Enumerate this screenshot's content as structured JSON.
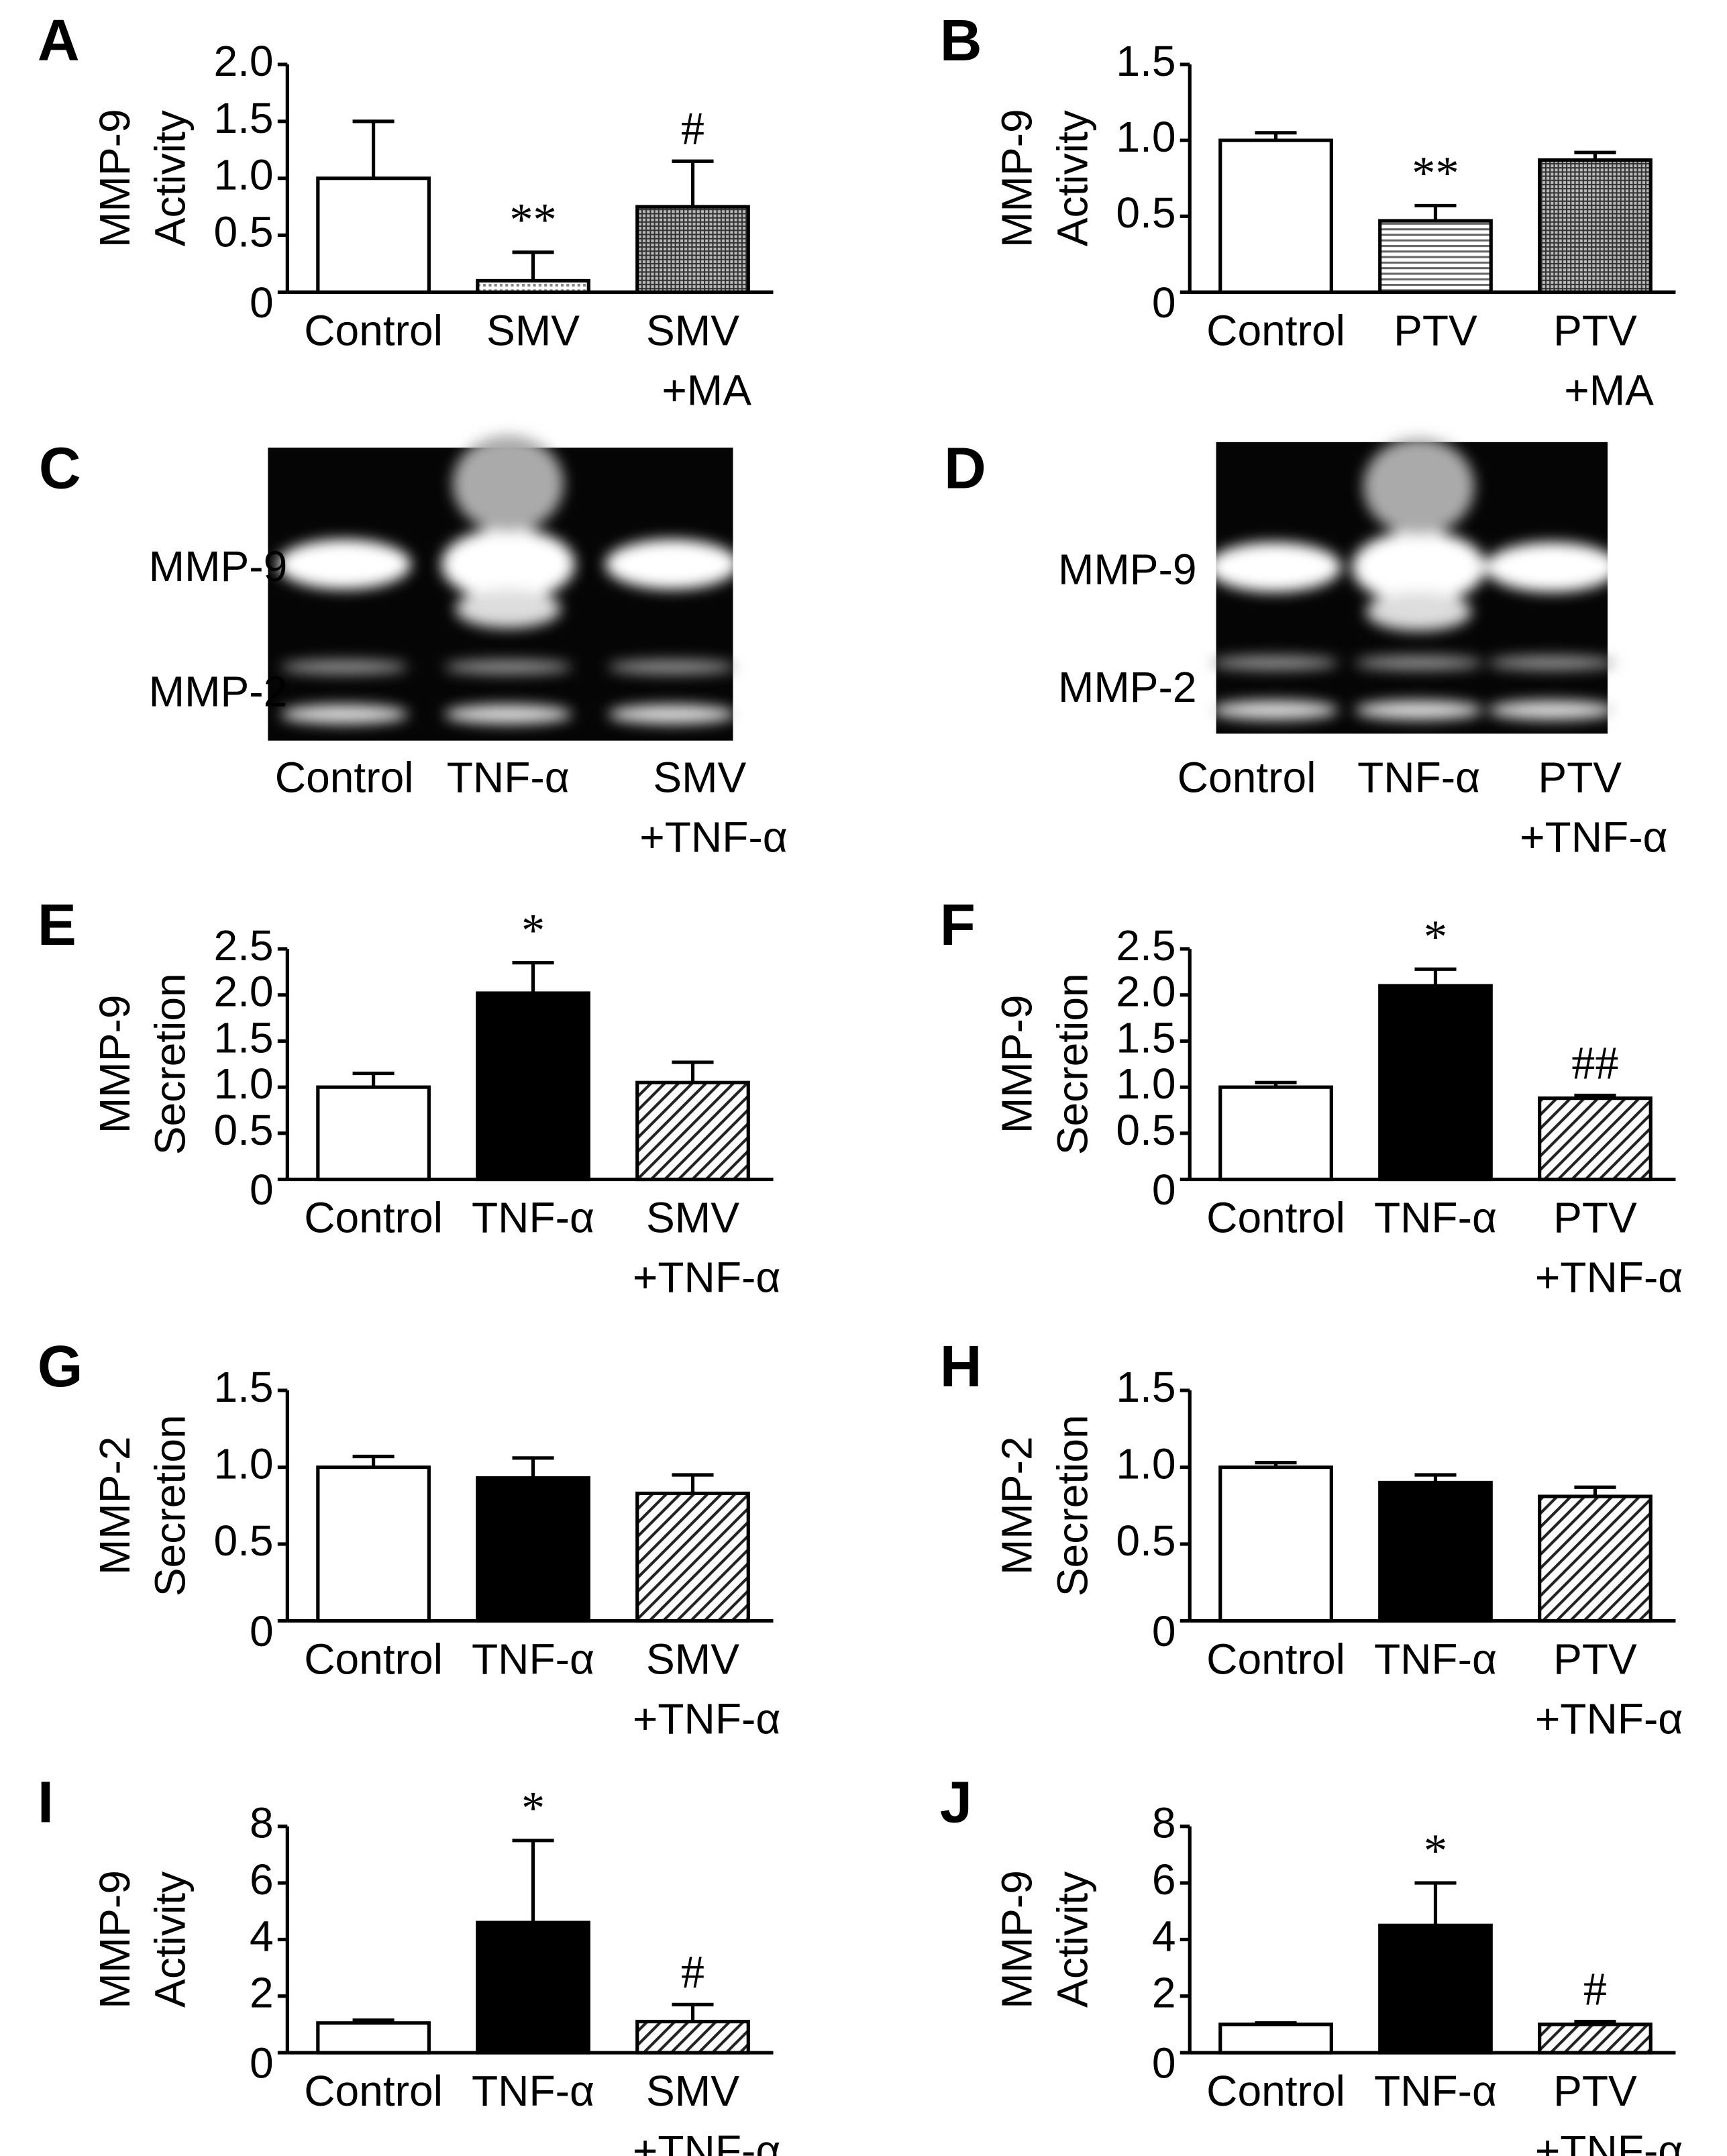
{
  "chart_data": [
    {
      "type": "bar",
      "panel": "A",
      "ylabel": [
        "MMP-9",
        "Activity"
      ],
      "categories": [
        [
          "Control"
        ],
        [
          "SMV"
        ],
        [
          "SMV",
          "+MA"
        ]
      ],
      "values": [
        1.0,
        0.1,
        0.75
      ],
      "errors": [
        0.5,
        0.25,
        0.4
      ],
      "annotations": [
        null,
        "**",
        "#"
      ],
      "bar_styles": [
        "white",
        "dots",
        "grid"
      ],
      "ylim": [
        0,
        2
      ],
      "yticks": [
        0,
        0.5,
        {
          "value": 1,
          "label": "1.0"
        },
        1.5,
        {
          "value": 2,
          "label": "2.0"
        }
      ]
    },
    {
      "type": "bar",
      "panel": "B",
      "ylabel": [
        "MMP-9",
        "Activity"
      ],
      "categories": [
        [
          "Control"
        ],
        [
          "PTV"
        ],
        [
          "PTV",
          "+MA"
        ]
      ],
      "values": [
        1.0,
        0.47,
        0.87
      ],
      "errors": [
        0.05,
        0.1,
        0.05
      ],
      "annotations": [
        null,
        "**",
        null
      ],
      "bar_styles": [
        "white",
        "hlines",
        "grid"
      ],
      "ylim": [
        0,
        1.5
      ],
      "yticks": [
        0,
        0.5,
        {
          "value": 1,
          "label": "1.0"
        },
        1.5
      ]
    },
    {
      "type": "bar",
      "panel": "E",
      "ylabel": [
        "MMP-9",
        "Secretion"
      ],
      "categories": [
        [
          "Control"
        ],
        [
          "TNF-α"
        ],
        [
          "SMV",
          "+TNF-α"
        ]
      ],
      "values": [
        1.0,
        2.02,
        1.05
      ],
      "errors": [
        0.15,
        0.33,
        0.22
      ],
      "annotations": [
        null,
        "*",
        null
      ],
      "bar_styles": [
        "white",
        "black",
        "diagonal"
      ],
      "ylim": [
        0,
        2.5
      ],
      "yticks": [
        0,
        0.5,
        {
          "value": 1,
          "label": "1.0"
        },
        1.5,
        {
          "value": 2,
          "label": "2.0"
        },
        2.5
      ]
    },
    {
      "type": "bar",
      "panel": "F",
      "ylabel": [
        "MMP-9",
        "Secretion"
      ],
      "categories": [
        [
          "Control"
        ],
        [
          "TNF-α"
        ],
        [
          "PTV",
          "+TNF-α"
        ]
      ],
      "values": [
        1.0,
        2.1,
        0.88
      ],
      "errors": [
        0.05,
        0.18,
        0.03
      ],
      "annotations": [
        null,
        "*",
        "##"
      ],
      "bar_styles": [
        "white",
        "black",
        "diagonal"
      ],
      "ylim": [
        0,
        2.5
      ],
      "yticks": [
        0,
        0.5,
        {
          "value": 1,
          "label": "1.0"
        },
        1.5,
        {
          "value": 2,
          "label": "2.0"
        },
        2.5
      ]
    },
    {
      "type": "bar",
      "panel": "G",
      "ylabel": [
        "MMP-2",
        "Secretion"
      ],
      "categories": [
        [
          "Control"
        ],
        [
          "TNF-α"
        ],
        [
          "SMV",
          "+TNF-α"
        ]
      ],
      "values": [
        1.0,
        0.93,
        0.83
      ],
      "errors": [
        0.07,
        0.13,
        0.12
      ],
      "annotations": [
        null,
        null,
        null
      ],
      "bar_styles": [
        "white",
        "black",
        "diagonal"
      ],
      "ylim": [
        0,
        1.5
      ],
      "yticks": [
        0,
        0.5,
        {
          "value": 1,
          "label": "1.0"
        },
        1.5
      ]
    },
    {
      "type": "bar",
      "panel": "H",
      "ylabel": [
        "MMP-2",
        "Secretion"
      ],
      "categories": [
        [
          "Control"
        ],
        [
          "TNF-α"
        ],
        [
          "PTV",
          "+TNF-α"
        ]
      ],
      "values": [
        1.0,
        0.9,
        0.81
      ],
      "errors": [
        0.03,
        0.05,
        0.06
      ],
      "annotations": [
        null,
        null,
        null
      ],
      "bar_styles": [
        "white",
        "black",
        "diagonal"
      ],
      "ylim": [
        0,
        1.5
      ],
      "yticks": [
        0,
        0.5,
        {
          "value": 1,
          "label": "1.0"
        },
        1.5
      ]
    },
    {
      "type": "bar",
      "panel": "I",
      "ylabel": [
        "MMP-9",
        "Activity"
      ],
      "categories": [
        [
          "Control"
        ],
        [
          "TNF-α"
        ],
        [
          "SMV",
          "+TNF-α"
        ]
      ],
      "values": [
        1.05,
        4.6,
        1.1
      ],
      "errors": [
        0.1,
        2.9,
        0.6
      ],
      "annotations": [
        null,
        "*",
        "#"
      ],
      "bar_styles": [
        "white",
        "black",
        "diagonal"
      ],
      "ylim": [
        0,
        8
      ],
      "yticks": [
        0,
        2,
        4,
        6,
        8
      ]
    },
    {
      "type": "bar",
      "panel": "J",
      "ylabel": [
        "MMP-9",
        "Activity"
      ],
      "categories": [
        [
          "Control"
        ],
        [
          "TNF-α"
        ],
        [
          "PTV",
          "+TNF-α"
        ]
      ],
      "values": [
        1.0,
        4.5,
        1.0
      ],
      "errors": [
        0.05,
        1.5,
        0.1
      ],
      "annotations": [
        null,
        "*",
        "#"
      ],
      "bar_styles": [
        "white",
        "black",
        "diagonal"
      ],
      "ylim": [
        0,
        8
      ],
      "yticks": [
        0,
        2,
        4,
        6,
        8
      ]
    }
  ],
  "blots": [
    {
      "panel": "C",
      "bands": [
        "MMP-9",
        "MMP-2"
      ],
      "lanes": [
        [
          "Control"
        ],
        [
          "TNF-α"
        ],
        [
          "SMV",
          "+TNF-α"
        ]
      ]
    },
    {
      "panel": "D",
      "bands": [
        "MMP-9",
        "MMP-2"
      ],
      "lanes": [
        [
          "Control"
        ],
        [
          "TNF-α"
        ],
        [
          "PTV",
          "+TNF-α"
        ]
      ]
    }
  ]
}
